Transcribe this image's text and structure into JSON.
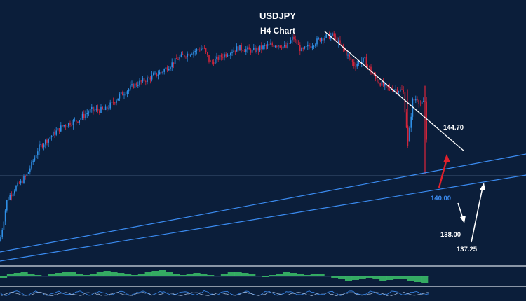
{
  "chart_data": {
    "type": "candlestick",
    "title": "USDJPY",
    "subtitle": "H4 Chart",
    "colors": {
      "background": "#0b1e3a",
      "bull": "#2f8fe6",
      "bear": "#d0243a",
      "trendline": "#ffffff",
      "channel": "#3b8cf2",
      "arrow_up": "#e0202c",
      "arrow_path": "#ffffff",
      "oscillator_pos": "#3cc36a",
      "oscillator_neg": "#3cc36a",
      "level_140": "#3b8cf2",
      "level_text": "#ffffff"
    },
    "price_path": [
      [
        0,
        136.2
      ],
      [
        10,
        138.6
      ],
      [
        22,
        139.3
      ],
      [
        38,
        140.0
      ],
      [
        55,
        141.6
      ],
      [
        70,
        142.2
      ],
      [
        90,
        142.9
      ],
      [
        110,
        143.2
      ],
      [
        130,
        143.8
      ],
      [
        150,
        143.8
      ],
      [
        170,
        144.6
      ],
      [
        190,
        145.2
      ],
      [
        210,
        145.6
      ],
      [
        230,
        146.0
      ],
      [
        255,
        146.8
      ],
      [
        270,
        147.1
      ],
      [
        290,
        147.4
      ],
      [
        300,
        146.5
      ],
      [
        320,
        147.0
      ],
      [
        340,
        147.4
      ],
      [
        360,
        147.2
      ],
      [
        380,
        147.5
      ],
      [
        395,
        147.6
      ],
      [
        408,
        147.4
      ],
      [
        418,
        148.0
      ],
      [
        430,
        147.2
      ],
      [
        445,
        147.6
      ],
      [
        460,
        148.0
      ],
      [
        475,
        148.1
      ],
      [
        490,
        147.3
      ],
      [
        505,
        146.4
      ],
      [
        520,
        146.7
      ],
      [
        535,
        145.6
      ],
      [
        550,
        145.1
      ],
      [
        565,
        145.0
      ],
      [
        575,
        144.9
      ],
      [
        582,
        141.8
      ],
      [
        588,
        144.3
      ],
      [
        595,
        144.5
      ],
      [
        600,
        144.1
      ],
      [
        606,
        144.3
      ],
      [
        610,
        140.3
      ]
    ],
    "levels": [
      {
        "label": "144.70",
        "color": "#ffffff"
      },
      {
        "label": "140.00",
        "color": "#3b8cf2"
      },
      {
        "label": "138.00",
        "color": "#ffffff"
      },
      {
        "label": "137.25",
        "color": "#ffffff"
      }
    ],
    "oscillator_values": [
      -0.2,
      0.3,
      0.5,
      0.6,
      0.4,
      0.2,
      0.1,
      0.3,
      0.5,
      0.7,
      0.6,
      0.4,
      0.2,
      0.3,
      0.6,
      0.8,
      0.7,
      0.5,
      0.3,
      0.2,
      0.4,
      0.6,
      0.8,
      0.9,
      0.7,
      0.4,
      0.2,
      0.3,
      0.5,
      0.4,
      0.2,
      0.1,
      0.3,
      0.6,
      0.7,
      0.5,
      0.3,
      0.1,
      -0.1,
      0.2,
      0.4,
      0.6,
      0.5,
      0.3,
      0.2,
      0.4,
      0.3,
      0.1,
      -0.2,
      -0.4,
      -0.6,
      -0.5,
      -0.3,
      -0.2,
      -0.4,
      -0.6,
      -0.5,
      -0.3,
      -0.4,
      -0.6,
      -0.8,
      -0.9
    ]
  }
}
